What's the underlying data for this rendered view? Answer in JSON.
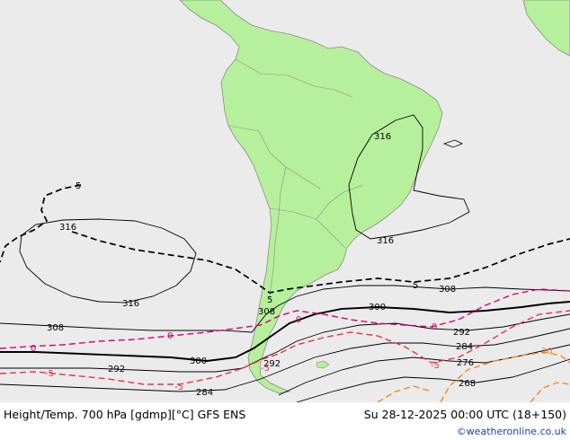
{
  "footer": {
    "title": "Height/Temp. 700 hPa [gdmp][°C] GFS ENS",
    "valid_time": "Su 28-12-2025 00:00 UTC (18+150)",
    "credit": "©weatheronline.co.uk"
  },
  "colors": {
    "ocean": "#ebebeb",
    "land": "#b7f09c",
    "land_border": "#8a8a8a",
    "height_contour": "#000000",
    "temp_0": "#d6006f",
    "temp_minus5": "#e8323c",
    "temp_10": "#f08a24"
  },
  "contours": {
    "height": [
      "316",
      "316",
      "316",
      "316",
      "308",
      "308",
      "308",
      "300",
      "300",
      "292",
      "292",
      "292",
      "284",
      "284",
      "276",
      "268"
    ],
    "temp_black": [
      "5",
      "5",
      "5"
    ],
    "temp_magenta": [
      "0",
      "0",
      "0",
      "0"
    ],
    "temp_red": [
      "-5",
      "-5",
      "-5",
      "-5"
    ],
    "temp_orange": [
      "10"
    ]
  }
}
